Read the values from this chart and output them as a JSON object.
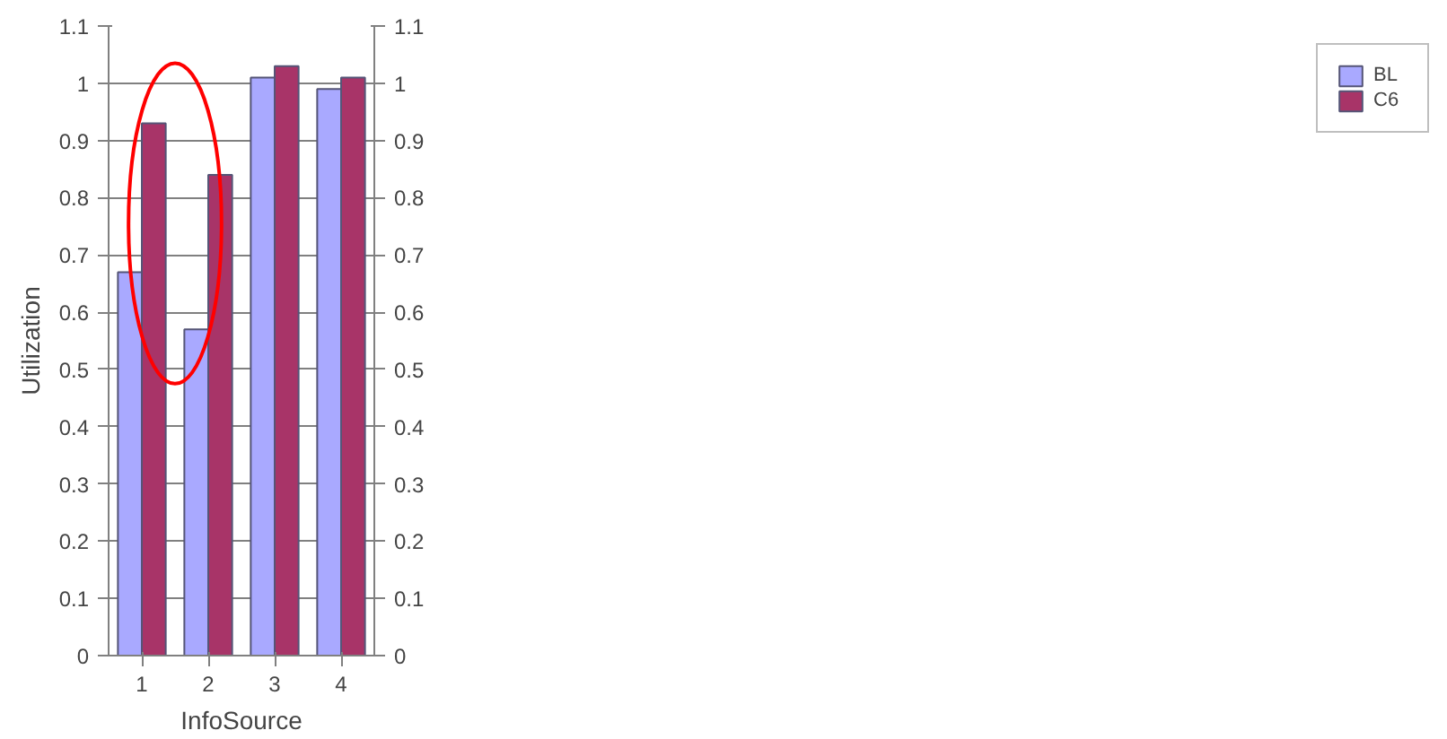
{
  "chart_data": {
    "type": "bar",
    "xlabel": "InfoSource",
    "ylabel": "Utilization",
    "categories": [
      "1",
      "2",
      "3",
      "4"
    ],
    "series": [
      {
        "name": "BL",
        "color": "#a9a9ff",
        "values": [
          0.67,
          0.57,
          1.01,
          0.99
        ]
      },
      {
        "name": "C6",
        "color": "#a83468",
        "values": [
          0.93,
          0.84,
          1.03,
          1.01
        ]
      }
    ],
    "ylim": [
      0,
      1.1
    ],
    "yticks": [
      0,
      0.1,
      0.2,
      0.3,
      0.4,
      0.5,
      0.6,
      0.7,
      0.8,
      0.9,
      1,
      1.1
    ],
    "y2lim": [
      0,
      1.1
    ],
    "y2ticks": [
      0,
      0.1,
      0.2,
      0.3,
      0.4,
      0.5,
      0.6,
      0.7,
      0.8,
      0.9,
      1,
      1.1
    ],
    "grid": "y",
    "legend": "right"
  }
}
